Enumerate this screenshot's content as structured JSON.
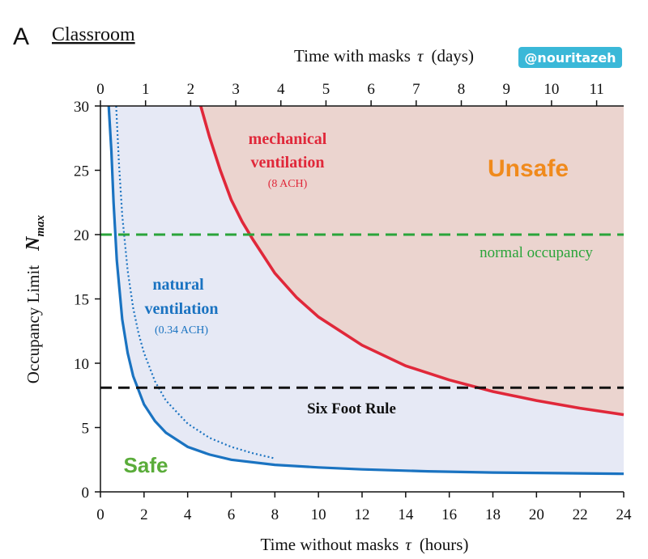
{
  "colors": {
    "natural": "#1a73c1",
    "mechanical": "#e0283a",
    "normal_occupancy": "#2aa43a",
    "six_foot": "#111111",
    "safe_fill": "#e6e9f5",
    "unsafe_fill": "#ebd4cf",
    "safe_text": "#5aac3a",
    "unsafe_text": "#f08a1c",
    "badge_bg": "#3ab8d8"
  },
  "chart_data": {
    "type": "line",
    "panel_letter": "A",
    "panel_title": "Classroom",
    "top_axis_label": "Time with masks",
    "top_axis_symbol": "τ",
    "top_axis_unit": "(days)",
    "bottom_axis_label": "Time without masks",
    "bottom_axis_symbol": "τ",
    "bottom_axis_unit": "(hours)",
    "ylabel_text": "Occupancy Limit",
    "ylabel_symbol": "N",
    "ylabel_sub": "max",
    "xlim": [
      0,
      24
    ],
    "ylim": [
      0,
      30
    ],
    "x_ticks": [
      0,
      2,
      4,
      6,
      8,
      10,
      12,
      14,
      16,
      18,
      20,
      22,
      24
    ],
    "y_ticks": [
      0,
      5,
      10,
      15,
      20,
      25,
      30
    ],
    "top_ticks": [
      0,
      1,
      2,
      3,
      4,
      5,
      6,
      7,
      8,
      9,
      10,
      11
    ],
    "top_range_days": [
      0,
      11.6
    ],
    "grid": false,
    "series": [
      {
        "key": "natural",
        "x": [
          0.38,
          0.5,
          0.6,
          0.75,
          1.0,
          1.25,
          1.5,
          2.0,
          2.5,
          3.0,
          4.0,
          5.0,
          6.0,
          8.0,
          10.0,
          12.0,
          15.0,
          18.0,
          21.0,
          24.0
        ],
        "y": [
          30,
          26.5,
          22.5,
          18.0,
          13.4,
          10.8,
          9.0,
          6.8,
          5.5,
          4.6,
          3.5,
          2.9,
          2.5,
          2.1,
          1.9,
          1.75,
          1.6,
          1.5,
          1.45,
          1.4
        ]
      },
      {
        "key": "natural_dotted",
        "x": [
          0.72,
          0.85,
          1.0,
          1.25,
          1.5,
          1.75,
          2.0,
          2.5,
          3.0,
          4.0,
          5.0,
          6.0,
          7.0,
          8.0
        ],
        "y": [
          30,
          25.5,
          21.5,
          17.2,
          14.3,
          12.3,
          10.8,
          8.6,
          7.1,
          5.3,
          4.2,
          3.5,
          3.0,
          2.6
        ]
      },
      {
        "key": "mechanical",
        "x": [
          4.6,
          5.0,
          5.5,
          6.0,
          6.5,
          7.0,
          8.0,
          9.0,
          10.0,
          12.0,
          14.0,
          16.0,
          18.0,
          20.0,
          22.0,
          24.0
        ],
        "y": [
          30,
          27.6,
          25.0,
          22.7,
          21.0,
          19.6,
          17.0,
          15.1,
          13.6,
          11.4,
          9.8,
          8.7,
          7.8,
          7.1,
          6.5,
          6.0
        ]
      }
    ],
    "reference_lines": [
      {
        "key": "normal_occupancy",
        "y": 20,
        "label": "normal occupancy"
      },
      {
        "key": "six_foot",
        "y": 8.1,
        "label": "Six Foot Rule"
      }
    ],
    "annotations": {
      "mechanical_l1": "mechanical",
      "mechanical_l2": "ventilation",
      "mechanical_l3": "(8 ACH)",
      "natural_l1": "natural",
      "natural_l2": "ventilation",
      "natural_l3": "(0.34 ACH)",
      "unsafe": "Unsafe",
      "safe": "Safe"
    },
    "badge": "@nouritazeh"
  }
}
